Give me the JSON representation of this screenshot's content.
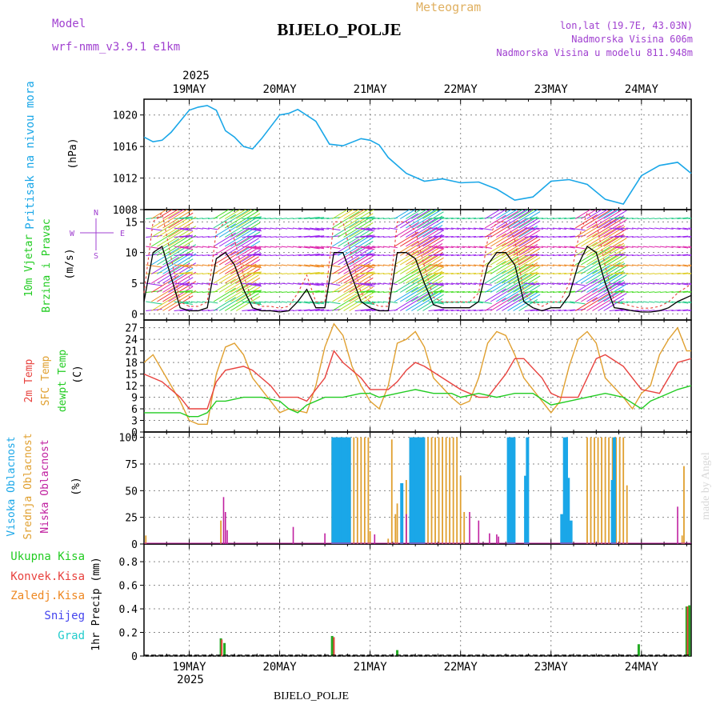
{
  "header": {
    "model_label": "Model",
    "model_name": "wrf-nmm_v3.9.1 e1km",
    "meteogram_label": "Meteogram",
    "station": "BIJELO_POLJE",
    "lonlat": "lon,lat (19.7E, 43.03N)",
    "elevation": "Nadmorska Visina 606m",
    "model_elevation": "Nadmorska Visina u modelu 811.948m"
  },
  "footer": {
    "station": "BIJELO_POLJE",
    "credit": "made by Angel"
  },
  "colors": {
    "pressure": "#1aa7e8",
    "temp2m": "#e8423e",
    "sfc": "#e0a030",
    "dewpt": "#22cc22",
    "high_cloud": "#1aa7e8",
    "mid_cloud": "#e0a030",
    "low_cloud": "#c020a0",
    "precip_total": "#22aa22",
    "precip_conv": "#e8423e"
  },
  "chart_data": [
    {
      "type": "line",
      "title": "",
      "ylabel": "Pritisak na nivou mora",
      "unit_label": "(hPa)",
      "ylim": [
        1008,
        1022
      ],
      "yticks": [
        1008,
        1012,
        1016,
        1020
      ],
      "x_day_start": 18.5,
      "x_day_end": 24.55,
      "x_ticks": [
        "19MAY",
        "20MAY",
        "21MAY",
        "22MAY",
        "23MAY",
        "24MAY"
      ],
      "year_label": "2025",
      "series": [
        {
          "name": "Pritisak na nivou mora",
          "x": [
            18.5,
            18.6,
            18.7,
            18.8,
            19.0,
            19.1,
            19.2,
            19.3,
            19.4,
            19.5,
            19.6,
            19.7,
            19.8,
            20.0,
            20.1,
            20.2,
            20.4,
            20.55,
            20.7,
            20.9,
            21.0,
            21.1,
            21.2,
            21.4,
            21.6,
            21.8,
            22.0,
            22.2,
            22.4,
            22.6,
            22.8,
            23.0,
            23.2,
            23.4,
            23.6,
            23.8,
            24.0,
            24.2,
            24.4,
            24.55
          ],
          "values": [
            1017.2,
            1016.6,
            1016.8,
            1017.8,
            1020.6,
            1021.0,
            1021.2,
            1020.6,
            1018.0,
            1017.2,
            1016.0,
            1015.7,
            1017.0,
            1020.0,
            1020.2,
            1020.7,
            1019.2,
            1016.3,
            1016.1,
            1017.0,
            1016.8,
            1016.2,
            1014.6,
            1012.6,
            1011.6,
            1011.9,
            1011.4,
            1011.5,
            1010.6,
            1009.2,
            1009.6,
            1011.6,
            1011.8,
            1011.2,
            1009.3,
            1008.7,
            1012.3,
            1013.6,
            1014.0,
            1012.6
          ]
        }
      ]
    },
    {
      "type": "line",
      "title": "",
      "ylabel": "10m Vjetar Brzina i Pravac",
      "unit_label": "(m/s)",
      "ylim": [
        -1,
        17
      ],
      "yticks": [
        0,
        5,
        10,
        15
      ],
      "compass_labels": [
        "N",
        "W",
        "E",
        "S"
      ],
      "series": [
        {
          "name": "Brzina",
          "x": [
            18.5,
            18.6,
            18.7,
            18.8,
            18.9,
            19.0,
            19.1,
            19.2,
            19.3,
            19.4,
            19.5,
            19.6,
            19.7,
            19.8,
            19.9,
            20.0,
            20.1,
            20.2,
            20.3,
            20.4,
            20.5,
            20.6,
            20.7,
            20.8,
            20.9,
            21.0,
            21.1,
            21.2,
            21.3,
            21.4,
            21.5,
            21.6,
            21.7,
            21.8,
            21.9,
            22.0,
            22.1,
            22.2,
            22.3,
            22.4,
            22.5,
            22.6,
            22.7,
            22.8,
            22.9,
            23.0,
            23.1,
            23.2,
            23.3,
            23.4,
            23.5,
            23.6,
            23.7,
            23.8,
            23.9,
            24.0,
            24.1,
            24.2,
            24.3,
            24.4,
            24.55
          ],
          "values": [
            2,
            10,
            11,
            6,
            1,
            0.5,
            0.5,
            1,
            9,
            10,
            8,
            4,
            1,
            0.5,
            0.5,
            0.3,
            0.5,
            2,
            4,
            1,
            1,
            10,
            10,
            6,
            2,
            1,
            0.5,
            0.5,
            10,
            10,
            9,
            5,
            1.5,
            1,
            1,
            1,
            1,
            2,
            8,
            10,
            10,
            8,
            2,
            1,
            0.5,
            1,
            1,
            3,
            8,
            11,
            10,
            5,
            1,
            0.8,
            0.5,
            0.3,
            0.3,
            0.5,
            1,
            2,
            3
          ]
        }
      ]
    },
    {
      "type": "line",
      "title": "",
      "ylabel": "2m Temp / SFC Temp / dewpt Temp",
      "unit_label": "(C)",
      "ylim": [
        0,
        29
      ],
      "yticks": [
        0,
        3,
        6,
        9,
        12,
        15,
        18,
        21,
        24,
        27
      ],
      "series": [
        {
          "name": "2m Temp",
          "x": [
            18.5,
            18.7,
            18.9,
            19.0,
            19.2,
            19.3,
            19.4,
            19.6,
            19.7,
            19.9,
            20.0,
            20.2,
            20.3,
            20.5,
            20.6,
            20.7,
            20.9,
            21.0,
            21.2,
            21.3,
            21.4,
            21.5,
            21.6,
            21.8,
            22.0,
            22.1,
            22.2,
            22.3,
            22.5,
            22.6,
            22.7,
            22.9,
            23.0,
            23.1,
            23.3,
            23.4,
            23.5,
            23.6,
            23.8,
            23.9,
            24.0,
            24.2,
            24.4,
            24.55
          ],
          "values": [
            15,
            13,
            9,
            6,
            6,
            13,
            16,
            17,
            16,
            12,
            9,
            9,
            8,
            14,
            21,
            18,
            14,
            11,
            11,
            13,
            16,
            18,
            17,
            14,
            11,
            10,
            9,
            9,
            15,
            19,
            19,
            14,
            10,
            9,
            9,
            14,
            19,
            20,
            17,
            14,
            11,
            10,
            18,
            19
          ]
        },
        {
          "name": "SFC Temp",
          "x": [
            18.5,
            18.6,
            18.8,
            18.9,
            19.0,
            19.1,
            19.2,
            19.3,
            19.4,
            19.5,
            19.6,
            19.7,
            19.9,
            20.0,
            20.1,
            20.3,
            20.4,
            20.5,
            20.6,
            20.7,
            20.8,
            20.9,
            21.0,
            21.1,
            21.2,
            21.3,
            21.4,
            21.5,
            21.6,
            21.7,
            21.9,
            22.0,
            22.1,
            22.2,
            22.3,
            22.4,
            22.5,
            22.6,
            22.7,
            22.9,
            23.0,
            23.1,
            23.2,
            23.3,
            23.4,
            23.5,
            23.6,
            23.8,
            23.9,
            24.0,
            24.1,
            24.2,
            24.3,
            24.4,
            24.5,
            24.55
          ],
          "values": [
            18,
            20,
            12,
            8,
            3,
            2,
            2,
            15,
            22,
            23,
            20,
            14,
            8,
            5,
            6,
            5,
            12,
            22,
            28,
            25,
            17,
            12,
            8,
            6,
            12,
            23,
            24,
            26,
            22,
            14,
            9,
            7,
            8,
            14,
            23,
            26,
            25,
            20,
            14,
            8,
            5,
            8,
            17,
            24,
            26,
            23,
            14,
            9,
            6,
            10,
            12,
            20,
            24,
            27,
            21,
            21
          ]
        },
        {
          "name": "dewpt Temp",
          "x": [
            18.5,
            18.7,
            18.9,
            19.0,
            19.1,
            19.2,
            19.3,
            19.4,
            19.6,
            19.8,
            20.0,
            20.1,
            20.2,
            20.3,
            20.5,
            20.7,
            20.9,
            21.0,
            21.1,
            21.3,
            21.5,
            21.7,
            21.9,
            22.0,
            22.2,
            22.4,
            22.6,
            22.8,
            23.0,
            23.2,
            23.4,
            23.6,
            23.8,
            24.0,
            24.1,
            24.2,
            24.4,
            24.55
          ],
          "values": [
            5,
            5,
            5,
            4,
            4,
            5,
            8,
            8,
            9,
            9,
            8,
            6,
            5,
            7,
            9,
            9,
            10,
            10,
            9,
            10,
            11,
            10,
            10,
            9,
            10,
            9,
            10,
            10,
            7,
            8,
            9,
            10,
            9,
            6,
            8,
            9,
            11,
            12
          ]
        }
      ]
    },
    {
      "type": "bar",
      "title": "",
      "ylabel": "Visoka Oblacnost / Srednja Oblacnost / Niska Oblacnost",
      "unit_label": "(%)",
      "ylim": [
        0,
        105
      ],
      "yticks": [
        0,
        25,
        50,
        75,
        100
      ],
      "series": [
        {
          "name": "Visoka Oblacnost",
          "x": [
            20.59,
            20.61,
            20.63,
            20.66,
            20.68,
            20.7,
            20.72,
            20.75,
            20.77,
            21.35,
            21.45,
            21.47,
            21.49,
            21.51,
            21.53,
            21.55,
            21.57,
            21.59,
            22.53,
            22.55,
            22.57,
            22.59,
            22.72,
            22.74,
            23.12,
            23.15,
            23.17,
            23.19,
            23.22,
            23.68,
            23.7
          ],
          "values": [
            100,
            100,
            100,
            100,
            100,
            100,
            100,
            100,
            100,
            57,
            100,
            100,
            100,
            100,
            100,
            100,
            100,
            100,
            100,
            100,
            100,
            100,
            64,
            100,
            28,
            100,
            100,
            62,
            22,
            60,
            100
          ]
        },
        {
          "name": "Srednja Oblacnost",
          "x": [
            18.52,
            19.35,
            20.58,
            20.62,
            20.66,
            20.7,
            20.74,
            20.78,
            20.82,
            20.86,
            20.9,
            20.94,
            20.98,
            21.0,
            21.2,
            21.24,
            21.28,
            21.3,
            21.4,
            21.44,
            21.48,
            21.52,
            21.56,
            21.6,
            21.64,
            21.68,
            21.72,
            21.76,
            21.8,
            21.84,
            21.88,
            21.92,
            21.96,
            22.0,
            22.04,
            23.4,
            23.44,
            23.48,
            23.52,
            23.56,
            23.6,
            23.64,
            23.68,
            23.72,
            23.76,
            23.8,
            23.84,
            24.45,
            24.47
          ],
          "values": [
            8,
            22,
            97,
            100,
            100,
            100,
            100,
            100,
            100,
            100,
            100,
            100,
            100,
            12,
            5,
            98,
            28,
            38,
            60,
            100,
            100,
            100,
            100,
            100,
            100,
            100,
            100,
            100,
            100,
            100,
            100,
            100,
            100,
            64,
            30,
            100,
            100,
            100,
            100,
            100,
            100,
            100,
            100,
            100,
            100,
            100,
            55,
            8,
            73
          ]
        },
        {
          "name": "Niska Oblacnost",
          "x": [
            19.38,
            19.4,
            19.42,
            20.15,
            20.5,
            21.05,
            21.4,
            22.1,
            22.2,
            22.32,
            22.4,
            22.42,
            24.4
          ],
          "values": [
            44,
            30,
            13,
            16,
            10,
            9,
            28,
            30,
            22,
            10,
            9,
            7,
            35
          ]
        }
      ]
    },
    {
      "type": "bar",
      "title": "",
      "ylabel": "1hr Precip",
      "unit_label": "(mm)",
      "ylim": [
        0,
        0.95
      ],
      "yticks": [
        0,
        0.2,
        0.4,
        0.6,
        0.8
      ],
      "legend": [
        "Ukupna Kisa",
        "Konvek.Kisa",
        "Zaledj.Kisa",
        "Snijeg",
        "Grad"
      ],
      "series": [
        {
          "name": "Ukupna Kisa",
          "x": [
            19.35,
            19.39,
            20.58,
            21.3,
            23.97,
            24.5,
            24.53
          ],
          "values": [
            0.15,
            0.11,
            0.17,
            0.05,
            0.1,
            0.42,
            0.43
          ]
        },
        {
          "name": "Konvek.Kisa",
          "x": [
            19.36,
            20.6,
            24.51
          ],
          "values": [
            0.14,
            0.16,
            0.42
          ]
        }
      ]
    }
  ]
}
